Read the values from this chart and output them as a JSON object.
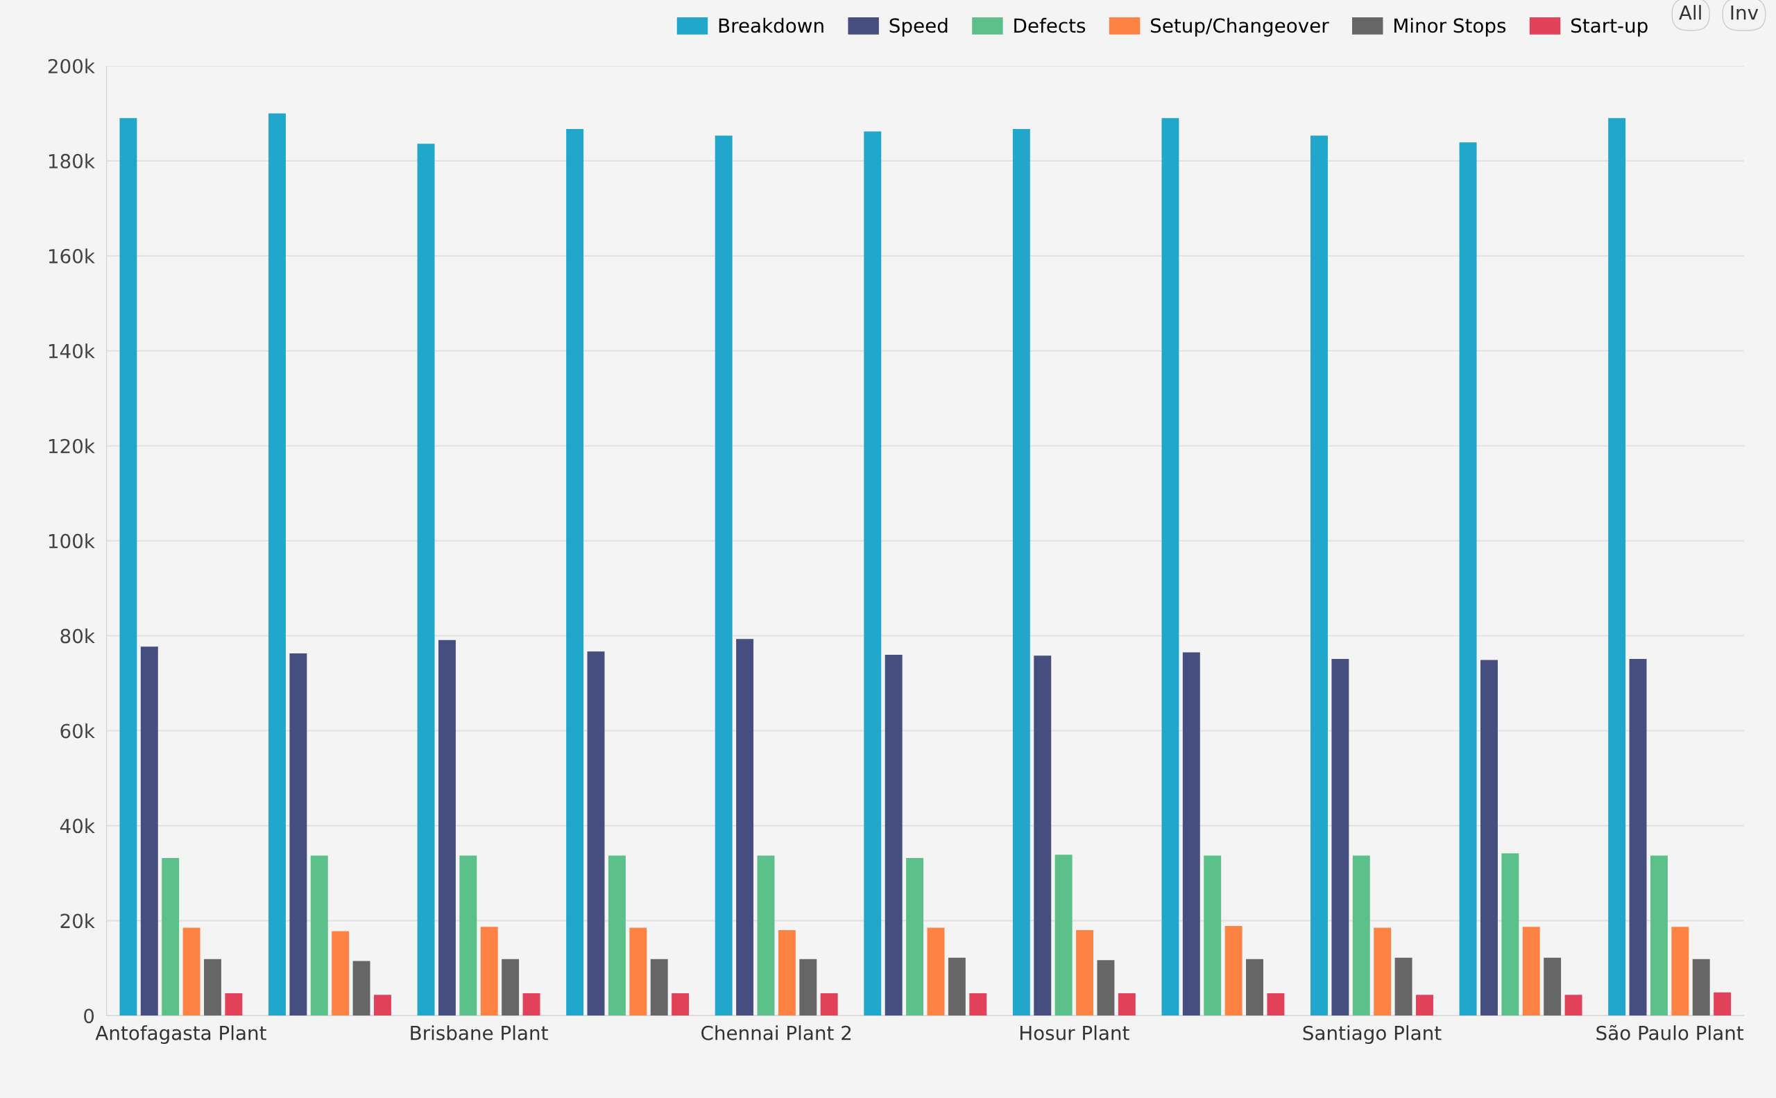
{
  "chart_data": {
    "type": "bar",
    "categories": [
      "Antofagasta Plant",
      null,
      "Brisbane Plant",
      null,
      "Chennai Plant 2",
      null,
      "Hosur Plant",
      null,
      "Santiago Plant",
      null,
      "São Paulo Plant"
    ],
    "series": [
      {
        "name": "Breakdown",
        "color": "#22a7cc",
        "values": [
          189000,
          190000,
          183600,
          186700,
          185300,
          186200,
          186700,
          189000,
          185300,
          183900,
          189000
        ]
      },
      {
        "name": "Speed",
        "color": "#454e7e",
        "values": [
          77700,
          76300,
          79100,
          76700,
          79300,
          76000,
          75800,
          76500,
          75100,
          74900,
          75100
        ]
      },
      {
        "name": "Defects",
        "color": "#5bc08a",
        "values": [
          33200,
          33700,
          33700,
          33700,
          33700,
          33200,
          33900,
          33700,
          33700,
          34200,
          33700
        ]
      },
      {
        "name": "Setup/Changeover",
        "color": "#fd8344",
        "values": [
          18500,
          17800,
          18700,
          18500,
          18000,
          18500,
          18000,
          18900,
          18500,
          18700,
          18700
        ]
      },
      {
        "name": "Minor Stops",
        "color": "#666666",
        "values": [
          11900,
          11500,
          11900,
          11900,
          11900,
          12200,
          11700,
          11900,
          12200,
          12200,
          11900
        ]
      },
      {
        "name": "Start-up",
        "color": "#e2415a",
        "values": [
          4700,
          4400,
          4700,
          4700,
          4700,
          4700,
          4700,
          4700,
          4400,
          4400,
          4900
        ]
      }
    ],
    "ylim": [
      0,
      200000
    ],
    "yticks": [
      {
        "value": 0,
        "label": "0"
      },
      {
        "value": 20000,
        "label": "20k"
      },
      {
        "value": 40000,
        "label": "40k"
      },
      {
        "value": 60000,
        "label": "60k"
      },
      {
        "value": 80000,
        "label": "80k"
      },
      {
        "value": 100000,
        "label": "100k"
      },
      {
        "value": 120000,
        "label": "120k"
      },
      {
        "value": 140000,
        "label": "140k"
      },
      {
        "value": 160000,
        "label": "160k"
      },
      {
        "value": 180000,
        "label": "180k"
      },
      {
        "value": 200000,
        "label": "200k"
      }
    ],
    "grid": "y",
    "legend": "top right",
    "annotations": [
      "All",
      "Inv"
    ]
  }
}
